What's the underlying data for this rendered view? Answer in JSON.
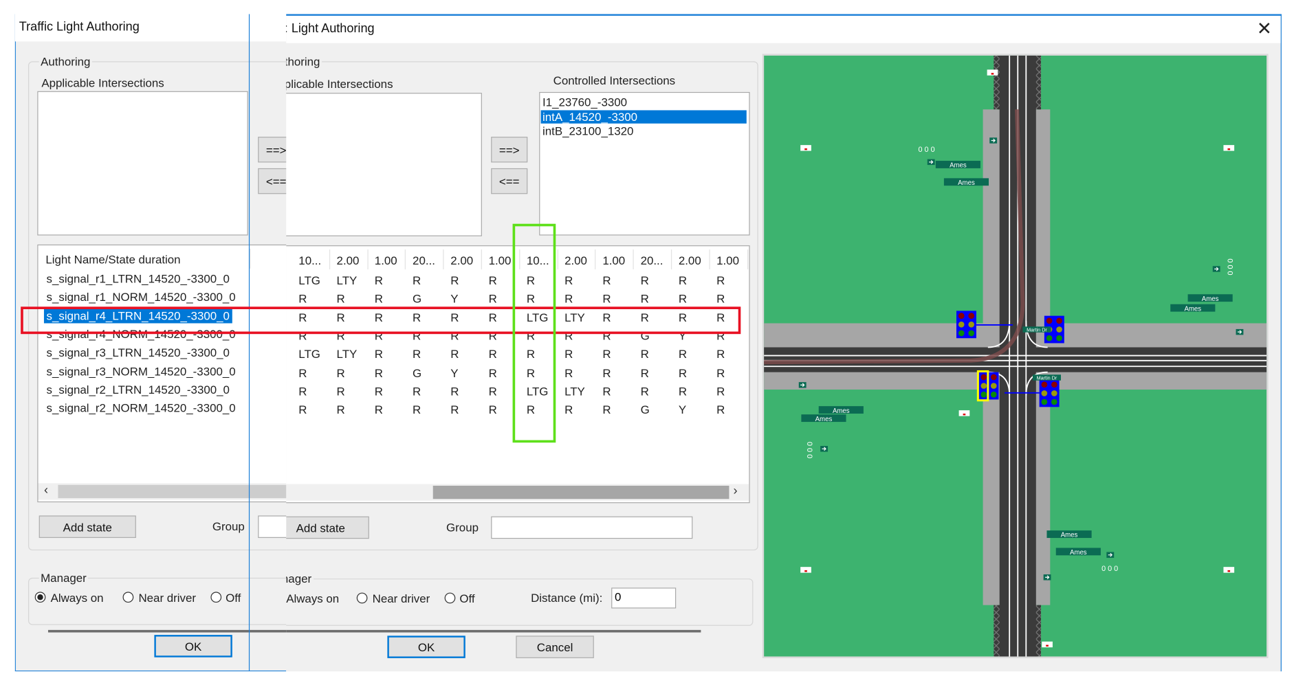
{
  "window": {
    "title_back": "Traffic Light Authoring",
    "title_front": ": Light Authoring",
    "close_icon": "close-icon"
  },
  "authoring": {
    "group_label": "Authoring",
    "group_label_front": "thoring",
    "applicable_label": "Applicable Intersections",
    "applicable_label_front": "plicable Intersections",
    "applicable_items": [],
    "controlled_label": "Controlled Intersections",
    "controlled_items": [
      "I1_23760_-3300",
      "intA_14520_-3300",
      "intB_23100_1320"
    ],
    "controlled_selected_index": 1,
    "add_button": "==>",
    "remove_button": "<==",
    "remove_button_back": "<=="
  },
  "grid": {
    "name_header": "Light Name/State duration",
    "durations": [
      "10...",
      "2.00",
      "1.00",
      "20...",
      "2.00",
      "1.00",
      "10...",
      "2.00",
      "1.00",
      "20...",
      "2.00",
      "1.00"
    ],
    "rows": [
      {
        "name": "s_signal_r1_LTRN_14520_-3300_0",
        "states": [
          "LTG",
          "LTY",
          "R",
          "R",
          "R",
          "R",
          "R",
          "R",
          "R",
          "R",
          "R",
          "R"
        ]
      },
      {
        "name": "s_signal_r1_NORM_14520_-3300_0",
        "states": [
          "R",
          "R",
          "R",
          "G",
          "Y",
          "R",
          "R",
          "R",
          "R",
          "R",
          "R",
          "R"
        ]
      },
      {
        "name": "s_signal_r4_LTRN_14520_-3300_0",
        "states": [
          "R",
          "R",
          "R",
          "R",
          "R",
          "R",
          "LTG",
          "LTY",
          "R",
          "R",
          "R",
          "R"
        ]
      },
      {
        "name": "s_signal_r4_NORM_14520_-3300_0",
        "states": [
          "R",
          "R",
          "R",
          "R",
          "R",
          "R",
          "R",
          "R",
          "R",
          "G",
          "Y",
          "R"
        ]
      },
      {
        "name": "s_signal_r3_LTRN_14520_-3300_0",
        "states": [
          "LTG",
          "LTY",
          "R",
          "R",
          "R",
          "R",
          "R",
          "R",
          "R",
          "R",
          "R",
          "R"
        ]
      },
      {
        "name": "s_signal_r3_NORM_14520_-3300_0",
        "states": [
          "R",
          "R",
          "R",
          "G",
          "Y",
          "R",
          "R",
          "R",
          "R",
          "R",
          "R",
          "R"
        ]
      },
      {
        "name": "s_signal_r2_LTRN_14520_-3300_0",
        "states": [
          "R",
          "R",
          "R",
          "R",
          "R",
          "R",
          "LTG",
          "LTY",
          "R",
          "R",
          "R",
          "R"
        ]
      },
      {
        "name": "s_signal_r2_NORM_14520_-3300_0",
        "states": [
          "R",
          "R",
          "R",
          "R",
          "R",
          "R",
          "R",
          "R",
          "R",
          "G",
          "Y",
          "R"
        ]
      }
    ],
    "selected_row": 2,
    "highlighted_column": 6,
    "row_highlight_color": "#e81123",
    "column_highlight_color": "#5ee01a",
    "selection_color": "#0078d7",
    "scroll_left_icon": "chevron-left-icon",
    "scroll_right_icon": "chevron-right-icon"
  },
  "controls": {
    "add_state": "Add state",
    "group_label": "Group",
    "group_value": ""
  },
  "manager": {
    "label": "Manager",
    "label_front": "anager",
    "options": [
      "Always on",
      "Near driver",
      "Off"
    ],
    "selected": "Always on",
    "distance_label": "Distance (mi):",
    "distance_value": "0"
  },
  "footer": {
    "ok": "OK",
    "cancel": "Cancel"
  },
  "map": {
    "background_color": "#3db36f",
    "road_color": "#a6a6a6",
    "signal_color": "#0000ff",
    "selected_signal_outline": "#ffff00",
    "street_sign": "Ames",
    "cross_street_sign": "Martin Dr",
    "marker_text": "0 0 0"
  }
}
